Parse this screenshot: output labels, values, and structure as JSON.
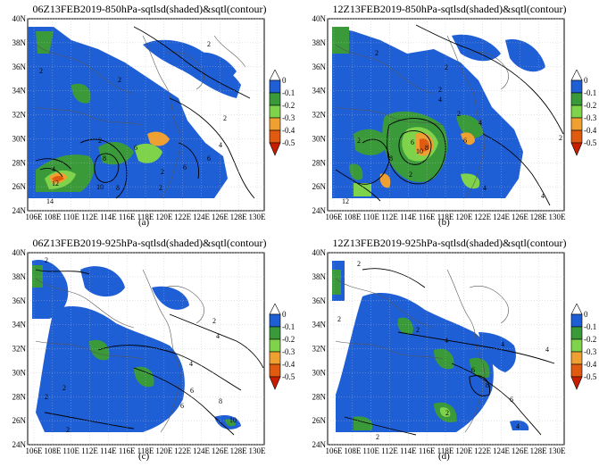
{
  "panels": [
    {
      "title": "06Z13FEB2019-850hPa-sqtlsd(shaded)&sqtl(contour)",
      "label": "(a)"
    },
    {
      "title": "12Z13FEB2019-850hPa-sqtlsd(shaded)&sqtl(contour)",
      "label": "(b)"
    },
    {
      "title": "06Z13FEB2019-925hPa-sqtlsd(shaded)&sqtl(contour)",
      "label": "(c)"
    },
    {
      "title": "12Z13FEB2019-925hPa-sqtlsd(shaded)&sqtl(contour)",
      "label": "(d)"
    }
  ],
  "axes": {
    "lat_ticks": [
      "40N",
      "38N",
      "36N",
      "34N",
      "32N",
      "30N",
      "28N",
      "26N",
      "24N"
    ],
    "lon_ticks": [
      "106E",
      "108E",
      "110E",
      "112E",
      "114E",
      "116E",
      "118E",
      "120E",
      "122E",
      "124E",
      "126E",
      "128E",
      "130E"
    ]
  },
  "colorbar": {
    "labels": [
      "0",
      "-0.1",
      "-0.2",
      "-0.3",
      "-0.4",
      "-0.5"
    ],
    "colors": [
      "#1f5fd6",
      "#3a9a3a",
      "#7fd34a",
      "#f0a030",
      "#e05a10",
      "#c81e00"
    ]
  },
  "contour_labels": {
    "a": [
      "2",
      "2",
      "2",
      "2",
      "2",
      "4",
      "6",
      "6",
      "8",
      "8",
      "10",
      "12",
      "14",
      "4",
      "2",
      "2",
      "6"
    ],
    "b": [
      "2",
      "2",
      "2",
      "2",
      "2",
      "4",
      "4",
      "6",
      "8",
      "8",
      "10",
      "12",
      "2",
      "4",
      "2",
      "4",
      "6"
    ],
    "c": [
      "2",
      "2",
      "2",
      "4",
      "4",
      "6",
      "8",
      "10",
      "2",
      "2",
      "6"
    ],
    "d": [
      "2",
      "2",
      "2",
      "2",
      "4",
      "4",
      "4",
      "6",
      "6",
      "8",
      "2",
      "4"
    ]
  }
}
